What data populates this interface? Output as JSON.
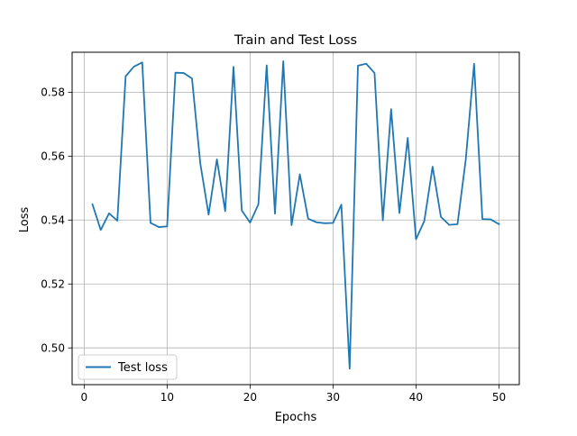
{
  "chart_data": {
    "type": "line",
    "title": "Train and Test Loss",
    "xlabel": "Epochs",
    "ylabel": "Loss",
    "xlim": [
      -1.45,
      52.45
    ],
    "ylim": [
      0.4885,
      0.5925
    ],
    "xticks": [
      0,
      10,
      20,
      30,
      40,
      50
    ],
    "xtick_labels": [
      "0",
      "10",
      "20",
      "30",
      "40",
      "50"
    ],
    "yticks": [
      0.5,
      0.52,
      0.54,
      0.56,
      0.58
    ],
    "ytick_labels": [
      "0.50",
      "0.52",
      "0.54",
      "0.56",
      "0.58"
    ],
    "grid": true,
    "legend_position": "lower-left",
    "x": [
      1,
      2,
      3,
      4,
      5,
      6,
      7,
      8,
      9,
      10,
      11,
      12,
      13,
      14,
      15,
      16,
      17,
      18,
      19,
      20,
      21,
      22,
      23,
      24,
      25,
      26,
      27,
      28,
      29,
      30,
      31,
      32,
      33,
      34,
      35,
      36,
      37,
      38,
      39,
      40,
      41,
      42,
      43,
      44,
      45,
      46,
      47,
      48,
      49,
      50
    ],
    "series": [
      {
        "name": "Test loss",
        "color": "#1f77b4",
        "values": [
          0.5449,
          0.5369,
          0.5421,
          0.5398,
          0.585,
          0.588,
          0.5893,
          0.5391,
          0.5378,
          0.538,
          0.5861,
          0.586,
          0.5843,
          0.5577,
          0.5417,
          0.559,
          0.5428,
          0.5879,
          0.543,
          0.5392,
          0.5449,
          0.5884,
          0.542,
          0.5897,
          0.5384,
          0.5543,
          0.5404,
          0.5393,
          0.539,
          0.5391,
          0.5448,
          0.4935,
          0.5883,
          0.5889,
          0.586,
          0.5399,
          0.5747,
          0.5422,
          0.5657,
          0.534,
          0.5397,
          0.5567,
          0.541,
          0.5385,
          0.5387,
          0.559,
          0.5889,
          0.5403,
          0.5402,
          0.5387
        ]
      }
    ]
  }
}
